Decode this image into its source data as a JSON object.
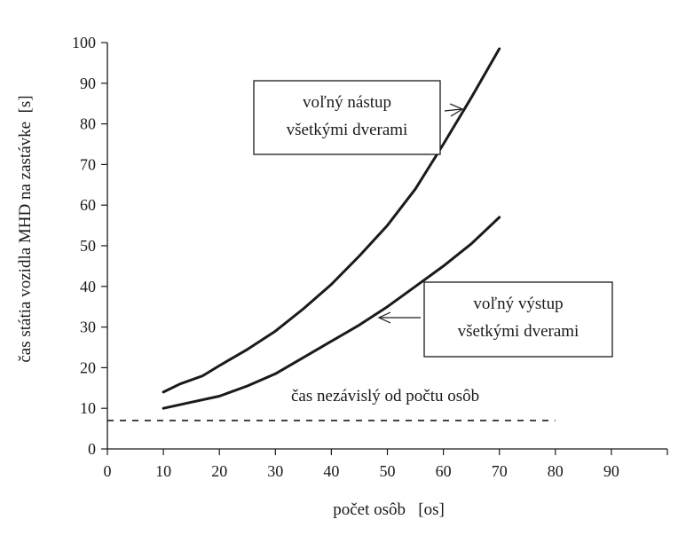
{
  "chart_data": {
    "type": "line",
    "title": "",
    "xlabel": "počet osôb   [os]",
    "ylabel": "čas státia vozidla MHD na zastávke  [s]",
    "xlim": [
      0,
      100
    ],
    "ylim": [
      0,
      100
    ],
    "xticks": [
      0,
      10,
      20,
      30,
      40,
      50,
      60,
      70,
      80,
      90
    ],
    "yticks": [
      0,
      10,
      20,
      30,
      40,
      50,
      60,
      70,
      80,
      90,
      100
    ],
    "grid": false,
    "series": [
      {
        "name": "voľný nástup všetkými dverami",
        "style": "solid",
        "color": "#1a1a1a",
        "x": [
          10,
          13,
          17,
          20,
          25,
          30,
          35,
          40,
          45,
          50,
          55,
          60,
          65,
          70
        ],
        "y": [
          14,
          16,
          18,
          20.5,
          24.5,
          29,
          34.5,
          40.5,
          47.5,
          55,
          64,
          75,
          86.5,
          98.5
        ]
      },
      {
        "name": "voľný výstup všetkými dverami",
        "style": "solid",
        "color": "#1a1a1a",
        "x": [
          10,
          15,
          20,
          25,
          30,
          35,
          40,
          45,
          50,
          55,
          60,
          65,
          70
        ],
        "y": [
          10,
          11.5,
          13,
          15.5,
          18.5,
          22.5,
          26.5,
          30.5,
          35,
          40,
          45,
          50.5,
          57
        ]
      },
      {
        "name": "čas nezávislý od počtu osôb",
        "style": "dashed",
        "color": "#1a1a1a",
        "x": [
          0,
          80
        ],
        "y": [
          7,
          7
        ]
      }
    ],
    "annotations": {
      "boarding_line1": "voľný nástup",
      "boarding_line2": "všetkými dverami",
      "alighting_line1": "voľný výstup",
      "alighting_line2": "všetkými dverami",
      "constant": "čas nezávislý od počtu osôb"
    }
  }
}
